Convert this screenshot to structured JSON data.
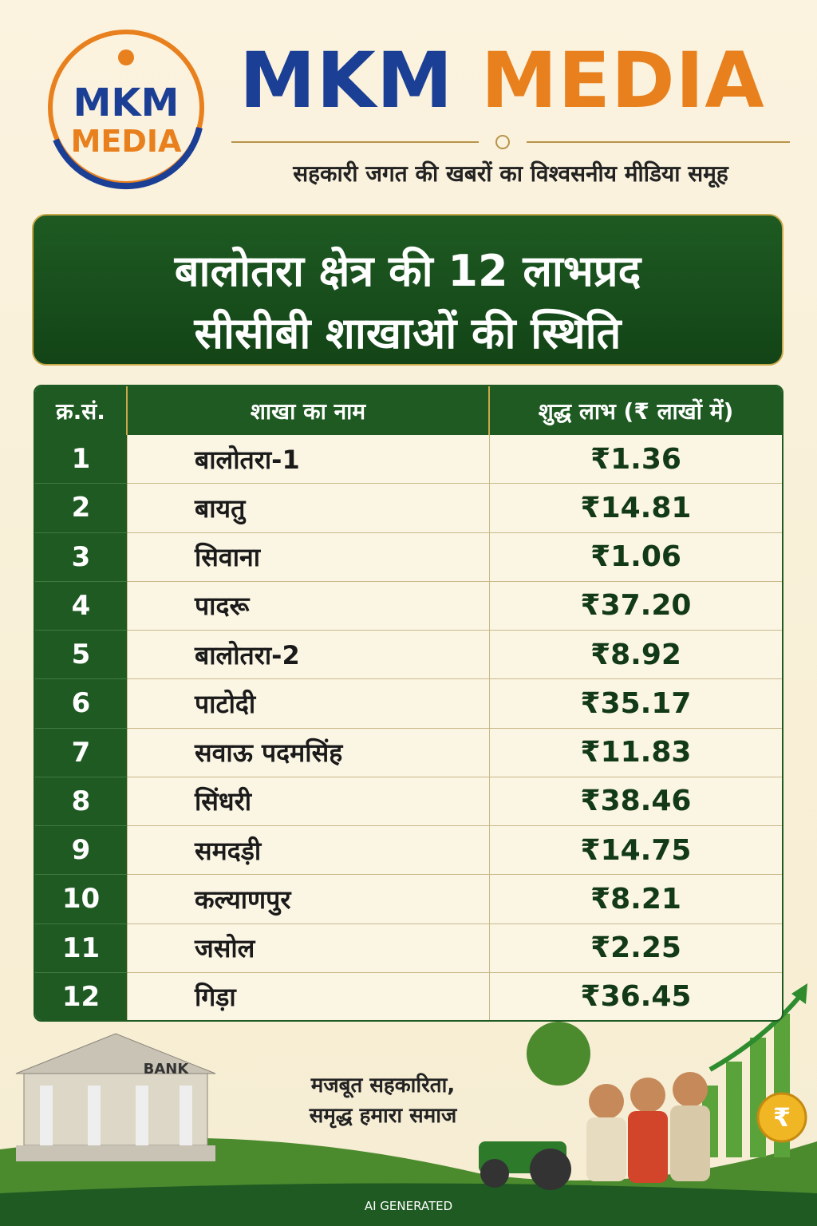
{
  "header": {
    "logo": {
      "top": "MKM",
      "bottom": "MEDIA"
    },
    "brand": {
      "first": "MKM",
      "second": "MEDIA"
    },
    "tagline": "सहकारी जगत की खबरों का विश्वसनीय मीडिया समूह"
  },
  "title": {
    "line1": "बालोतरा क्षेत्र की 12 लाभप्रद",
    "line2": "सीसीबी शाखाओं की स्थिति"
  },
  "table": {
    "headers": [
      "क्र.सं.",
      "शाखा का नाम",
      "शुद्ध लाभ (₹ लाखों में)"
    ],
    "rows": [
      [
        "1",
        "बालोतरा-1",
        "₹1.36"
      ],
      [
        "2",
        "बायतु",
        "₹14.81"
      ],
      [
        "3",
        "सिवाना",
        "₹1.06"
      ],
      [
        "4",
        "पादरू",
        "₹37.20"
      ],
      [
        "5",
        "बालोतरा-2",
        "₹8.92"
      ],
      [
        "6",
        "पाटोदी",
        "₹35.17"
      ],
      [
        "7",
        "सवाऊ पदमसिंह",
        "₹11.83"
      ],
      [
        "8",
        "सिंधरी",
        "₹38.46"
      ],
      [
        "9",
        "समदड़ी",
        "₹14.75"
      ],
      [
        "10",
        "कल्याणपुर",
        "₹8.21"
      ],
      [
        "11",
        "जसोल",
        "₹2.25"
      ],
      [
        "12",
        "गिड़ा",
        "₹36.45"
      ]
    ]
  },
  "footer": {
    "bank_sign": "BANK",
    "slogan_line1": "मजबूत सहकारिता,",
    "slogan_line2": "समृद्ध हमारा समाज",
    "coin": "₹",
    "note": "AI GENERATED"
  }
}
